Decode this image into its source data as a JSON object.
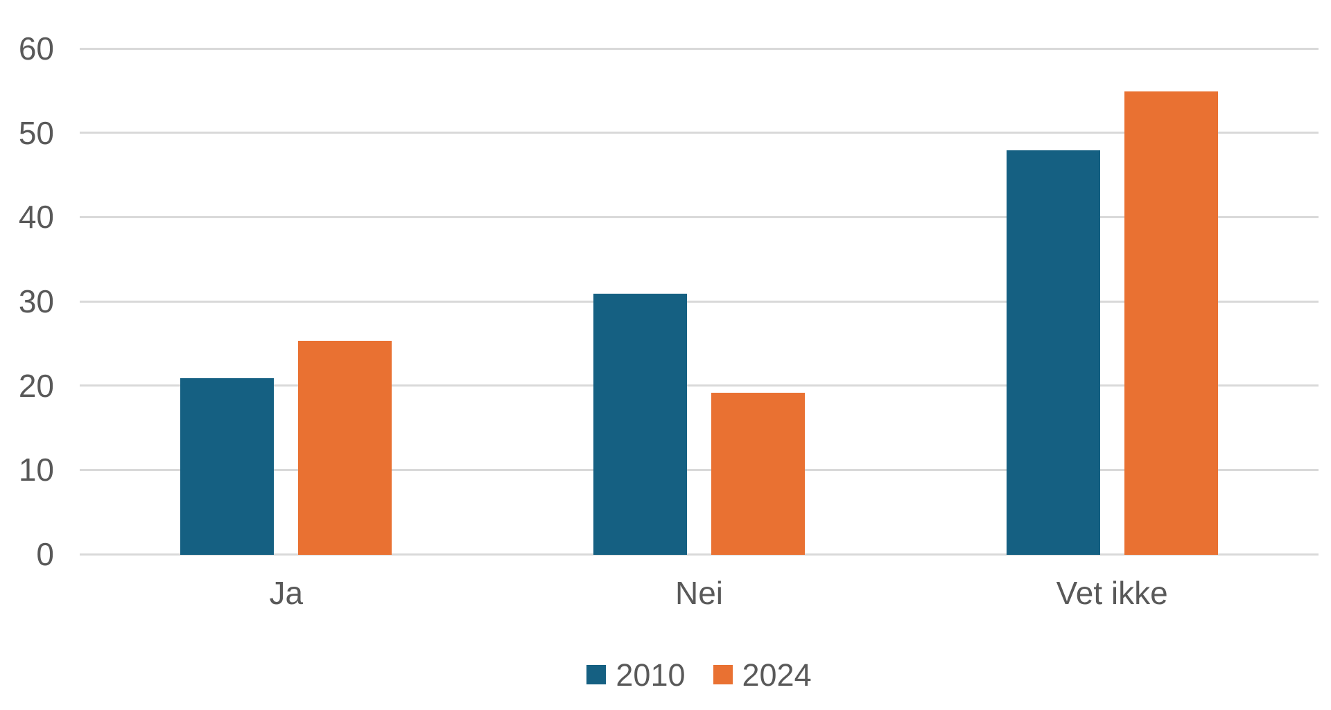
{
  "colors": {
    "background": "#FFFFFF",
    "gridline": "#D9D9D9",
    "axis_text": "#595959",
    "series_2010": "#156082",
    "series_2024": "#E97132"
  },
  "chart_data": {
    "type": "bar",
    "title": "",
    "xlabel": "",
    "ylabel": "",
    "categories": [
      "Ja",
      "Nei",
      "Vet ikke"
    ],
    "series": [
      {
        "name": "2010",
        "color": "#156082",
        "values": [
          21,
          31,
          48
        ]
      },
      {
        "name": "2024",
        "color": "#E97132",
        "values": [
          25.4,
          19.2,
          55
        ]
      }
    ],
    "ylim": [
      0,
      60
    ],
    "yticks": [
      0,
      10,
      20,
      30,
      40,
      50,
      60
    ],
    "ytick_labels": [
      "0",
      "10",
      "20",
      "30",
      "40",
      "50",
      "60"
    ],
    "grid": true,
    "legend_position": "bottom"
  }
}
